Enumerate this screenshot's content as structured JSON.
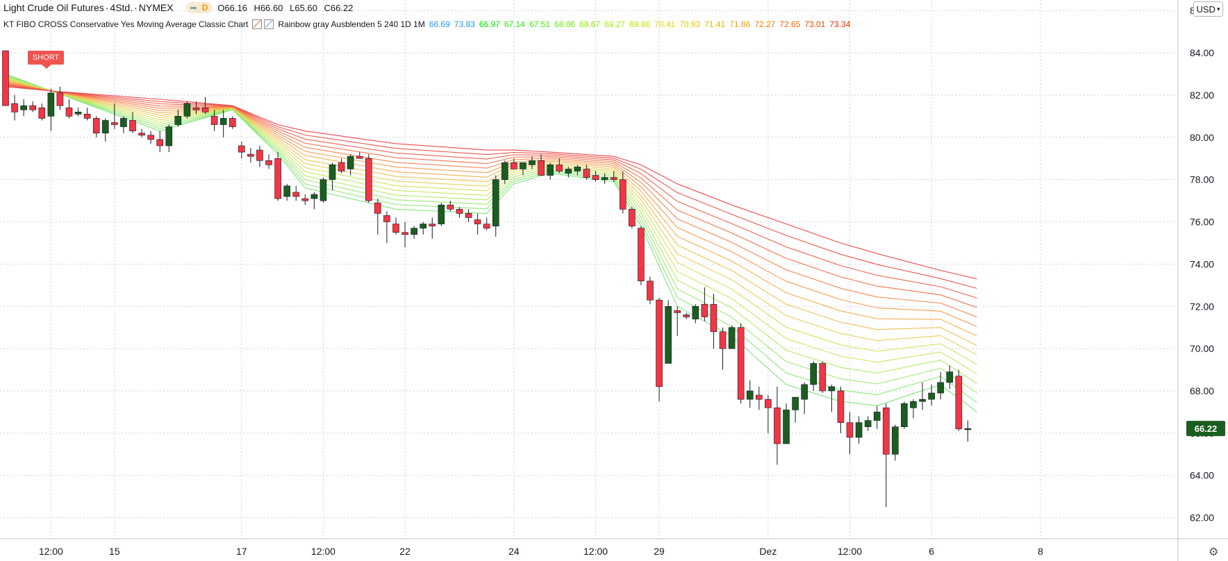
{
  "header": {
    "symbol": "Light Crude Oil Futures",
    "interval": "4Std.",
    "exchange": "NYMEX",
    "market_badge": "D",
    "ohlc": {
      "o_label": "O",
      "o": "66.16",
      "h_label": "H",
      "h": "66.60",
      "l_label": "L",
      "l": "65.60",
      "c_label": "C",
      "c": "66.22"
    }
  },
  "indicator": {
    "name": "KT FIBO CROSS Conservative Yes Moving Average Classic Chart",
    "settings": "Rainbow gray Ausblenden 5 240 1D 1M",
    "values": [
      "66.69",
      "73.83",
      "66.97",
      "67.14",
      "67.51",
      "68.06",
      "68.67",
      "69.27",
      "69.86",
      "70.41",
      "70.93",
      "71.41",
      "71.86",
      "72.27",
      "72.65",
      "73.01",
      "73.34"
    ],
    "value_colors": [
      "#2196f3",
      "#2196f3",
      "#00e600",
      "#1ef000",
      "#3cf000",
      "#66ef00",
      "#8aec00",
      "#a9e800",
      "#c6e200",
      "#dcd800",
      "#e8c800",
      "#f0b200",
      "#f59a00",
      "#f78000",
      "#f66400",
      "#f24800",
      "#ee2c00"
    ]
  },
  "currency_button": "USD",
  "signal_label": "SHORT",
  "colors": {
    "up": "#1b5e20",
    "down": "#f23645",
    "grid": "#cfd2d9",
    "price_tag": "#1b5e20"
  },
  "chart_data": {
    "type": "candlestick",
    "title": "Light Crude Oil Futures · 4Std. · NYMEX",
    "ylim": [
      61,
      86.5
    ],
    "y_ticks": [
      "62.00",
      "64.00",
      "66.00",
      "68.00",
      "70.00",
      "72.00",
      "74.00",
      "76.00",
      "78.00",
      "80.00",
      "82.00",
      "84.00",
      "86.00"
    ],
    "x_ticks": [
      {
        "label": "12:00",
        "i": 5
      },
      {
        "label": "15",
        "i": 12
      },
      {
        "label": "17",
        "i": 26
      },
      {
        "label": "12:00",
        "i": 35
      },
      {
        "label": "22",
        "i": 44
      },
      {
        "label": "24",
        "i": 56
      },
      {
        "label": "12:00",
        "i": 65
      },
      {
        "label": "29",
        "i": 72
      },
      {
        "label": "Dez",
        "i": 84
      },
      {
        "label": "12:00",
        "i": 93
      },
      {
        "label": "6",
        "i": 102
      },
      {
        "label": "8",
        "i": 114
      }
    ],
    "last_price": "66.22",
    "candles": [
      [
        84.1,
        84.1,
        81.5,
        81.5
      ],
      [
        81.6,
        82.0,
        80.8,
        81.2
      ],
      [
        81.3,
        81.8,
        81.0,
        81.5
      ],
      [
        81.5,
        81.7,
        81.2,
        81.3
      ],
      [
        81.4,
        81.6,
        80.8,
        80.9
      ],
      [
        81.0,
        82.3,
        80.3,
        82.1
      ],
      [
        82.1,
        82.4,
        81.3,
        81.5
      ],
      [
        81.4,
        81.8,
        80.9,
        81.0
      ],
      [
        81.1,
        81.4,
        81.0,
        81.2
      ],
      [
        81.1,
        81.4,
        80.8,
        80.9
      ],
      [
        80.9,
        81.0,
        80.0,
        80.2
      ],
      [
        80.2,
        80.9,
        79.8,
        80.8
      ],
      [
        80.7,
        81.6,
        80.4,
        80.6
      ],
      [
        80.5,
        81.0,
        80.2,
        80.9
      ],
      [
        80.8,
        81.2,
        80.2,
        80.3
      ],
      [
        80.2,
        80.4,
        80.0,
        80.1
      ],
      [
        80.1,
        80.3,
        79.7,
        79.9
      ],
      [
        79.9,
        80.3,
        79.3,
        79.6
      ],
      [
        79.6,
        80.6,
        79.3,
        80.5
      ],
      [
        80.6,
        81.3,
        80.5,
        81.0
      ],
      [
        81.0,
        81.7,
        80.9,
        81.6
      ],
      [
        81.4,
        81.7,
        81.1,
        81.3
      ],
      [
        81.4,
        81.9,
        81.1,
        81.2
      ],
      [
        81.0,
        81.3,
        80.3,
        80.6
      ],
      [
        80.6,
        81.3,
        80.0,
        80.9
      ],
      [
        80.9,
        81.0,
        80.4,
        80.5
      ],
      [
        79.6,
        79.8,
        79.0,
        79.3
      ],
      [
        79.2,
        79.5,
        78.8,
        79.1
      ],
      [
        79.4,
        79.6,
        78.6,
        78.9
      ],
      [
        78.9,
        79.2,
        78.5,
        78.7
      ],
      [
        79.0,
        79.3,
        77.0,
        77.1
      ],
      [
        77.2,
        77.8,
        77.0,
        77.7
      ],
      [
        77.4,
        77.7,
        77.0,
        77.2
      ],
      [
        77.1,
        77.3,
        76.8,
        77.0
      ],
      [
        77.1,
        77.4,
        76.6,
        77.3
      ],
      [
        77.0,
        78.1,
        76.9,
        78.0
      ],
      [
        78.0,
        78.8,
        77.5,
        78.7
      ],
      [
        78.8,
        79.0,
        78.3,
        78.4
      ],
      [
        78.5,
        79.2,
        78.2,
        79.1
      ],
      [
        79.1,
        79.3,
        79.0,
        79.0
      ],
      [
        79.0,
        79.2,
        76.9,
        77.0
      ],
      [
        76.9,
        77.1,
        75.4,
        76.4
      ],
      [
        76.3,
        76.5,
        75.0,
        76.0
      ],
      [
        75.9,
        76.2,
        75.4,
        75.5
      ],
      [
        75.5,
        76.0,
        74.8,
        75.4
      ],
      [
        75.4,
        75.8,
        75.2,
        75.7
      ],
      [
        75.7,
        76.0,
        75.4,
        75.9
      ],
      [
        75.9,
        76.2,
        75.2,
        75.8
      ],
      [
        75.9,
        76.9,
        75.8,
        76.8
      ],
      [
        76.8,
        77.0,
        76.5,
        76.6
      ],
      [
        76.6,
        76.7,
        76.2,
        76.4
      ],
      [
        76.4,
        76.6,
        76.0,
        76.2
      ],
      [
        76.1,
        76.4,
        75.4,
        75.9
      ],
      [
        75.9,
        76.2,
        75.6,
        75.7
      ],
      [
        75.8,
        78.2,
        75.3,
        78.0
      ],
      [
        78.0,
        78.9,
        77.8,
        78.8
      ],
      [
        78.8,
        79.0,
        78.5,
        78.5
      ],
      [
        78.5,
        78.8,
        78.2,
        78.8
      ],
      [
        78.7,
        79.1,
        78.5,
        78.9
      ],
      [
        78.9,
        79.2,
        78.2,
        78.2
      ],
      [
        78.2,
        78.8,
        78.0,
        78.7
      ],
      [
        78.7,
        79.0,
        78.3,
        78.4
      ],
      [
        78.3,
        78.6,
        78.1,
        78.5
      ],
      [
        78.4,
        78.7,
        78.2,
        78.6
      ],
      [
        78.5,
        78.7,
        78.0,
        78.1
      ],
      [
        78.2,
        78.4,
        77.9,
        78.0
      ],
      [
        78.0,
        78.3,
        77.8,
        78.1
      ],
      [
        78.1,
        78.4,
        77.9,
        78.0
      ],
      [
        78.0,
        78.4,
        76.4,
        76.6
      ],
      [
        76.6,
        76.7,
        75.7,
        75.8
      ],
      [
        75.7,
        75.8,
        73.0,
        73.2
      ],
      [
        73.2,
        73.4,
        72.1,
        72.3
      ],
      [
        72.3,
        72.4,
        67.5,
        68.2
      ],
      [
        69.3,
        72.3,
        69.3,
        72.0
      ],
      [
        71.8,
        72.0,
        70.6,
        71.7
      ],
      [
        71.6,
        71.7,
        71.4,
        71.5
      ],
      [
        71.4,
        72.1,
        71.2,
        72.0
      ],
      [
        72.1,
        72.9,
        71.3,
        71.5
      ],
      [
        72.1,
        72.6,
        70.0,
        70.8
      ],
      [
        70.8,
        71.0,
        69.0,
        70.0
      ],
      [
        70.0,
        71.1,
        70.0,
        71.0
      ],
      [
        71.0,
        71.2,
        67.4,
        67.6
      ],
      [
        67.6,
        68.5,
        67.2,
        68.0
      ],
      [
        67.8,
        68.2,
        67.1,
        67.6
      ],
      [
        67.6,
        67.8,
        66.0,
        67.2
      ],
      [
        67.2,
        68.2,
        64.5,
        65.5
      ],
      [
        65.5,
        67.4,
        65.5,
        67.1
      ],
      [
        67.1,
        67.6,
        66.5,
        67.7
      ],
      [
        67.6,
        68.4,
        66.9,
        68.3
      ],
      [
        68.3,
        69.4,
        68.0,
        69.3
      ],
      [
        69.3,
        69.4,
        67.9,
        68.0
      ],
      [
        68.0,
        68.3,
        67.0,
        68.2
      ],
      [
        68.0,
        68.2,
        66.0,
        66.5
      ],
      [
        66.5,
        67.0,
        65.0,
        65.8
      ],
      [
        65.8,
        66.8,
        65.5,
        66.5
      ],
      [
        66.3,
        66.8,
        66.1,
        66.6
      ],
      [
        66.6,
        67.3,
        66.2,
        67.0
      ],
      [
        67.2,
        67.4,
        62.5,
        65.0
      ],
      [
        65.0,
        66.4,
        64.7,
        66.3
      ],
      [
        66.3,
        67.5,
        66.2,
        67.4
      ],
      [
        67.2,
        67.6,
        66.7,
        67.5
      ],
      [
        67.5,
        68.4,
        67.1,
        67.6
      ],
      [
        67.6,
        68.3,
        67.3,
        67.9
      ],
      [
        67.9,
        68.9,
        67.6,
        68.4
      ],
      [
        68.4,
        69.2,
        68.1,
        68.9
      ],
      [
        68.7,
        69.0,
        66.1,
        66.2
      ],
      [
        66.16,
        66.6,
        65.6,
        66.22
      ]
    ],
    "ribbons": {
      "colors": [
        "#7fe47f",
        "#8ee87a",
        "#a0ea73",
        "#b4ea6b",
        "#c8e765",
        "#d8e05e",
        "#e6d25a",
        "#eec257",
        "#f2b055",
        "#f49c53",
        "#f48851",
        "#f2744f",
        "#ef624d",
        "#ec544b",
        "#e8484a"
      ],
      "keypoints": [
        {
          "i": 0,
          "start": 83.0,
          "end": 82.4
        },
        {
          "i": 5,
          "start": 82.2,
          "end": 82.2
        },
        {
          "i": 17,
          "start": 80.3,
          "end": 81.8
        },
        {
          "i": 25,
          "start": 81.3,
          "end": 81.5
        },
        {
          "i": 30,
          "start": 79.2,
          "end": 80.6
        },
        {
          "i": 33,
          "start": 77.6,
          "end": 80.3
        },
        {
          "i": 43,
          "start": 76.6,
          "end": 79.7
        },
        {
          "i": 53,
          "start": 76.4,
          "end": 79.4
        },
        {
          "i": 56,
          "start": 77.8,
          "end": 79.4
        },
        {
          "i": 60,
          "start": 78.3,
          "end": 79.3
        },
        {
          "i": 67,
          "start": 77.9,
          "end": 79.1
        },
        {
          "i": 70,
          "start": 75.8,
          "end": 78.7
        },
        {
          "i": 74,
          "start": 72.0,
          "end": 77.8
        },
        {
          "i": 80,
          "start": 70.6,
          "end": 76.8
        },
        {
          "i": 86,
          "start": 68.3,
          "end": 75.9
        },
        {
          "i": 92,
          "start": 67.5,
          "end": 75.0
        },
        {
          "i": 96,
          "start": 67.3,
          "end": 74.5
        },
        {
          "i": 103,
          "start": 68.3,
          "end": 73.7
        },
        {
          "i": 107,
          "start": 67.0,
          "end": 73.3
        }
      ]
    }
  }
}
